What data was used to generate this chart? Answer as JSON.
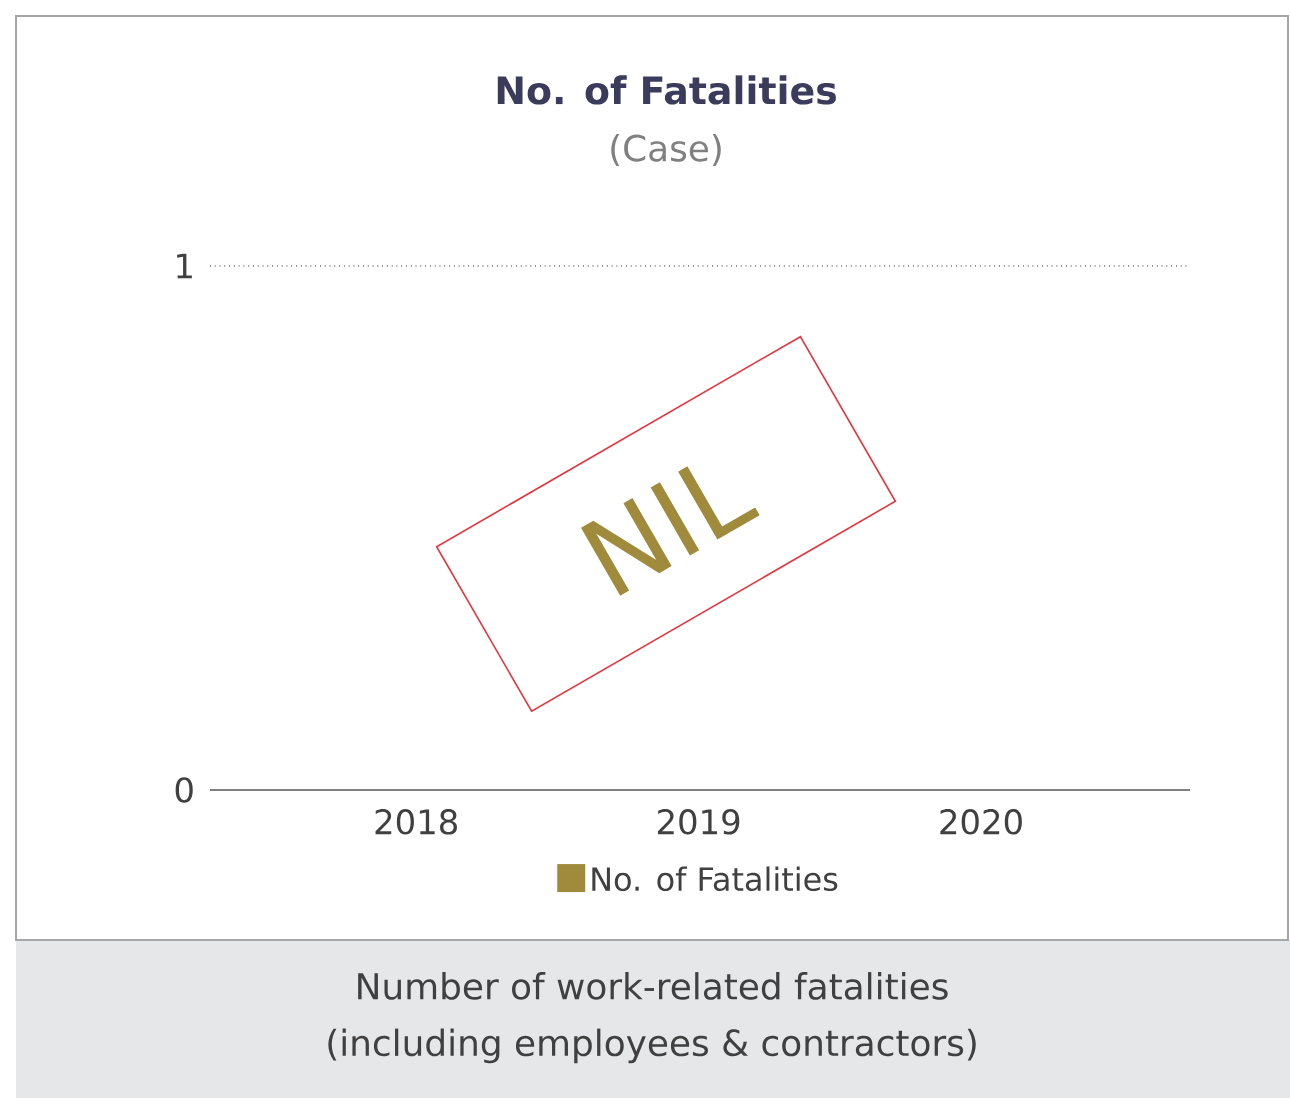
{
  "chart_data": {
    "type": "bar",
    "title": "No. of Fatalities",
    "subtitle": "(Case)",
    "categories": [
      "2018",
      "2019",
      "2020"
    ],
    "series": [
      {
        "name": "No. of Fatalities",
        "color": "#a08a3c",
        "values": [
          0,
          0,
          0
        ]
      }
    ],
    "ylim": [
      0,
      1
    ],
    "yticks": [
      0,
      1
    ],
    "grid": "y",
    "legend": "bottom",
    "annotations": [
      "NIL",
      "Number of work-related fatalities",
      "(including employees & contractors)"
    ]
  }
}
